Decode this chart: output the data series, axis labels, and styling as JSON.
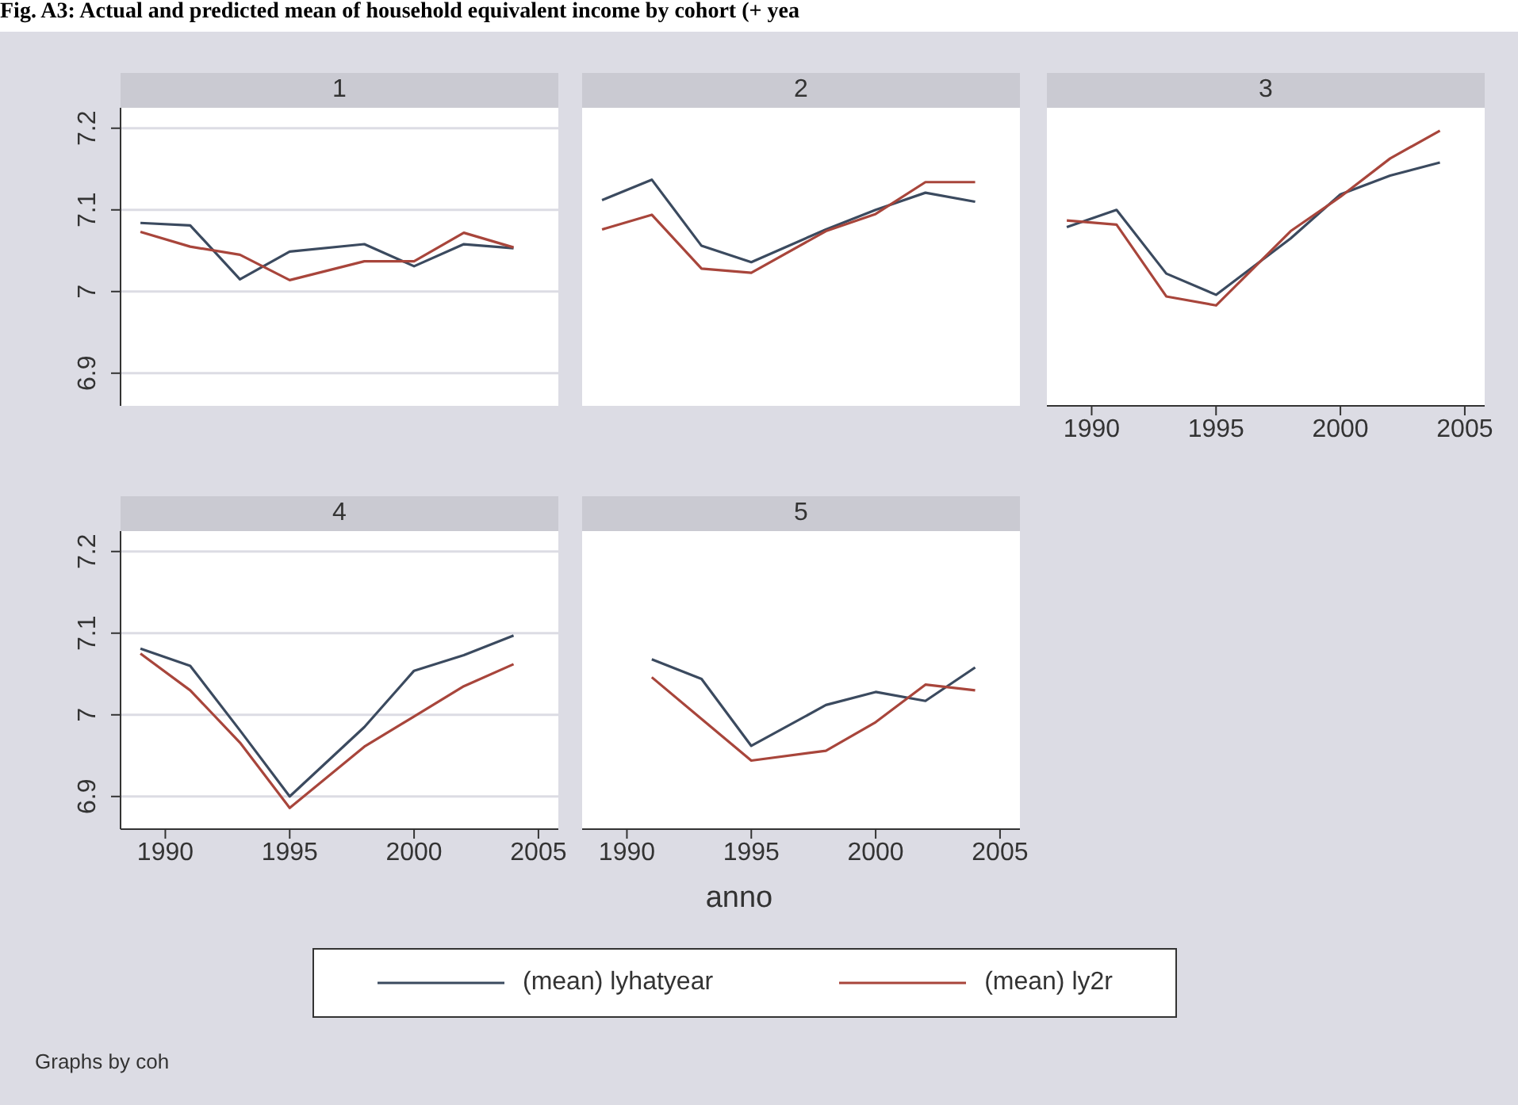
{
  "chart_data": [
    {
      "type": "line",
      "title": "1",
      "subtitle": "Fig. A3: Actual and predicted mean of household equivalent income by cohort (+ yea",
      "x": [
        1989,
        1991,
        1993,
        1995,
        1998,
        2000,
        2002,
        2004
      ],
      "xlim": [
        1988.2,
        2005.8
      ],
      "ylim": [
        6.86,
        7.225
      ],
      "yticks": [
        6.9,
        7,
        7.1,
        7.2
      ],
      "grid": "y",
      "tick_labels": "y",
      "legend": "bottom",
      "annotations": [
        "Graphs by coh"
      ],
      "series": [
        {
          "name": "(mean) lyhatyear",
          "color": "#3b4a5f",
          "values": [
            7.084,
            7.081,
            7.015,
            7.049,
            7.058,
            7.031,
            7.058,
            7.053
          ]
        },
        {
          "name": "(mean) ly2r",
          "color": "#a8453b",
          "values": [
            7.073,
            7.055,
            7.045,
            7.014,
            7.037,
            7.037,
            7.072,
            7.054
          ]
        }
      ]
    },
    {
      "type": "line",
      "title": "2",
      "x": [
        1989,
        1991,
        1993,
        1995,
        1998,
        2000,
        2002,
        2004
      ],
      "xlim": [
        1988.2,
        2005.8
      ],
      "ylim": [
        6.86,
        7.225
      ],
      "grid": "y",
      "tick_labels": false,
      "series": [
        {
          "color": "#3b4a5f",
          "values": [
            7.112,
            7.137,
            7.056,
            7.036,
            7.076,
            7.1,
            7.121,
            7.11
          ]
        },
        {
          "color": "#a8453b",
          "values": [
            7.076,
            7.094,
            7.028,
            7.023,
            7.074,
            7.095,
            7.134,
            7.134
          ]
        }
      ]
    },
    {
      "type": "line",
      "title": "3",
      "x": [
        1989,
        1991,
        1993,
        1995,
        1998,
        2000,
        2002,
        2004
      ],
      "xlim": [
        1988.2,
        2005.8
      ],
      "xticks": [
        1990,
        1995,
        2000,
        2005
      ],
      "ylim": [
        6.86,
        7.225
      ],
      "grid": "y",
      "tick_labels": "x",
      "series": [
        {
          "color": "#3b4a5f",
          "values": [
            7.079,
            7.1,
            7.022,
            6.996,
            7.065,
            7.119,
            7.142,
            7.158
          ]
        },
        {
          "color": "#a8453b",
          "values": [
            7.087,
            7.082,
            6.994,
            6.983,
            7.074,
            7.116,
            7.163,
            7.197
          ]
        }
      ]
    },
    {
      "type": "line",
      "title": "4",
      "xlabel": "anno",
      "x": [
        1989,
        1991,
        1993,
        1995,
        1998,
        2000,
        2002,
        2004
      ],
      "xlim": [
        1988.2,
        2005.8
      ],
      "xticks": [
        1990,
        1995,
        2000,
        2005
      ],
      "ylim": [
        6.86,
        7.225
      ],
      "yticks": [
        6.9,
        7,
        7.1,
        7.2
      ],
      "grid": "y",
      "series": [
        {
          "color": "#3b4a5f",
          "values": [
            7.081,
            7.06,
            6.981,
            6.9,
            6.985,
            7.054,
            7.073,
            7.097
          ]
        },
        {
          "color": "#a8453b",
          "values": [
            7.075,
            7.03,
            6.966,
            6.886,
            6.961,
            6.998,
            7.035,
            7.062
          ]
        }
      ]
    },
    {
      "type": "line",
      "title": "5",
      "x": [
        1991,
        1993,
        1995,
        1998,
        2000,
        2002,
        2004
      ],
      "xlim": [
        1988.2,
        2005.8
      ],
      "xticks": [
        1990,
        1995,
        2000,
        2005
      ],
      "ylim": [
        6.86,
        7.225
      ],
      "grid": "y",
      "tick_labels": "x",
      "series": [
        {
          "color": "#3b4a5f",
          "values": [
            7.068,
            7.044,
            6.962,
            7.012,
            7.028,
            7.017,
            7.058
          ]
        },
        {
          "color": "#a8453b",
          "values": [
            7.046,
            6.995,
            6.944,
            6.956,
            6.991,
            7.037,
            7.03
          ]
        }
      ]
    }
  ]
}
